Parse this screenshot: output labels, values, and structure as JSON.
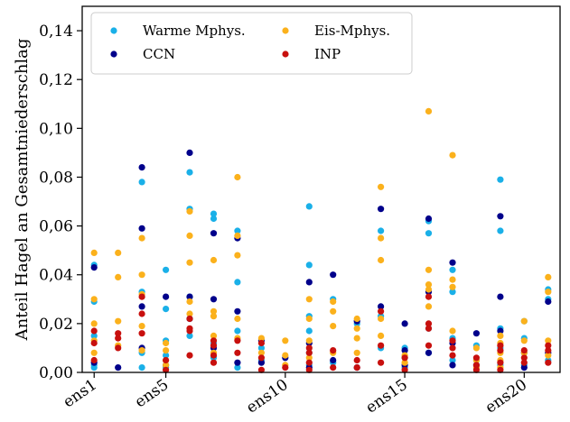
{
  "chart_data": {
    "type": "scatter",
    "title": "",
    "xlabel": "",
    "ylabel": "Anteil Hagel an Gesamtniederschlag",
    "ylim": [
      0,
      0.15
    ],
    "xlim": [
      0.5,
      20.5
    ],
    "grid": false,
    "legend_position": "top-left",
    "x_tick_positions": [
      1,
      4,
      9,
      14,
      19
    ],
    "x_tick_labels": [
      "ens1",
      "ens5",
      "ens10",
      "ens15",
      "ens20"
    ],
    "y_ticks": [
      0,
      0.02,
      0.04,
      0.06,
      0.08,
      0.1,
      0.12,
      0.14
    ],
    "y_tick_labels": [
      "0,00",
      "0,02",
      "0,04",
      "0,06",
      "0,08",
      "0,10",
      "0,12",
      "0,14"
    ],
    "series": [
      {
        "name": "Warme Mphys.",
        "color": "#1ab0e8",
        "points": [
          [
            1,
            0.044
          ],
          [
            1,
            0.029
          ],
          [
            1,
            0.003
          ],
          [
            1,
            0.002
          ],
          [
            1,
            0.015
          ],
          [
            3,
            0.078
          ],
          [
            3,
            0.033
          ],
          [
            3,
            0.008
          ],
          [
            3,
            0.002
          ],
          [
            4,
            0.042
          ],
          [
            4,
            0.026
          ],
          [
            4,
            0.013
          ],
          [
            4,
            0.007
          ],
          [
            4,
            0.002
          ],
          [
            5,
            0.082
          ],
          [
            5,
            0.067
          ],
          [
            5,
            0.031
          ],
          [
            5,
            0.022
          ],
          [
            5,
            0.015
          ],
          [
            6,
            0.065
          ],
          [
            6,
            0.063
          ],
          [
            6,
            0.012
          ],
          [
            6,
            0.006
          ],
          [
            7,
            0.058
          ],
          [
            7,
            0.037
          ],
          [
            7,
            0.017
          ],
          [
            7,
            0.002
          ],
          [
            8,
            0.01
          ],
          [
            8,
            0.005
          ],
          [
            10,
            0.068
          ],
          [
            10,
            0.044
          ],
          [
            10,
            0.023
          ],
          [
            10,
            0.017
          ],
          [
            10,
            0.008
          ],
          [
            10,
            0.003
          ],
          [
            11,
            0.03
          ],
          [
            11,
            0.004
          ],
          [
            12,
            0.02
          ],
          [
            13,
            0.058
          ],
          [
            13,
            0.023
          ],
          [
            13,
            0.01
          ],
          [
            14,
            0.01
          ],
          [
            14,
            0.006
          ],
          [
            14,
            0.002
          ],
          [
            15,
            0.062
          ],
          [
            15,
            0.057
          ],
          [
            15,
            0.018
          ],
          [
            15,
            0.008
          ],
          [
            16,
            0.042
          ],
          [
            16,
            0.033
          ],
          [
            16,
            0.014
          ],
          [
            16,
            0.005
          ],
          [
            17,
            0.011
          ],
          [
            17,
            0.005
          ],
          [
            18,
            0.079
          ],
          [
            18,
            0.058
          ],
          [
            18,
            0.018
          ],
          [
            18,
            0.01
          ],
          [
            18,
            0.003
          ],
          [
            19,
            0.021
          ],
          [
            19,
            0.014
          ],
          [
            19,
            0.003
          ],
          [
            20,
            0.034
          ],
          [
            20,
            0.03
          ],
          [
            20,
            0.005
          ]
        ]
      },
      {
        "name": "CCN",
        "color": "#00008b",
        "points": [
          [
            1,
            0.043
          ],
          [
            1,
            0.004
          ],
          [
            2,
            0.002
          ],
          [
            3,
            0.084
          ],
          [
            3,
            0.059
          ],
          [
            3,
            0.027
          ],
          [
            3,
            0.01
          ],
          [
            4,
            0.031
          ],
          [
            4,
            0.003
          ],
          [
            5,
            0.09
          ],
          [
            5,
            0.031
          ],
          [
            5,
            0.022
          ],
          [
            6,
            0.057
          ],
          [
            6,
            0.03
          ],
          [
            6,
            0.01
          ],
          [
            7,
            0.055
          ],
          [
            7,
            0.025
          ],
          [
            7,
            0.004
          ],
          [
            8,
            0.013
          ],
          [
            8,
            0.004
          ],
          [
            9,
            0.006
          ],
          [
            10,
            0.037
          ],
          [
            10,
            0.012
          ],
          [
            10,
            0.002
          ],
          [
            11,
            0.04
          ],
          [
            11,
            0.005
          ],
          [
            12,
            0.021
          ],
          [
            12,
            0.002
          ],
          [
            13,
            0.067
          ],
          [
            13,
            0.027
          ],
          [
            14,
            0.02
          ],
          [
            14,
            0.009
          ],
          [
            14,
            0.003
          ],
          [
            15,
            0.063
          ],
          [
            15,
            0.033
          ],
          [
            15,
            0.008
          ],
          [
            16,
            0.045
          ],
          [
            16,
            0.012
          ],
          [
            16,
            0.003
          ],
          [
            17,
            0.016
          ],
          [
            17,
            0.003
          ],
          [
            18,
            0.064
          ],
          [
            18,
            0.031
          ],
          [
            18,
            0.017
          ],
          [
            19,
            0.008
          ],
          [
            19,
            0.002
          ],
          [
            20,
            0.029
          ],
          [
            20,
            0.008
          ]
        ]
      },
      {
        "name": "Eis-Mphys.",
        "color": "#fbb11c",
        "points": [
          [
            1,
            0.049
          ],
          [
            1,
            0.03
          ],
          [
            1,
            0.02
          ],
          [
            1,
            0.013
          ],
          [
            1,
            0.008
          ],
          [
            2,
            0.049
          ],
          [
            2,
            0.039
          ],
          [
            2,
            0.021
          ],
          [
            2,
            0.011
          ],
          [
            3,
            0.055
          ],
          [
            3,
            0.04
          ],
          [
            3,
            0.032
          ],
          [
            3,
            0.019
          ],
          [
            3,
            0.009
          ],
          [
            4,
            0.012
          ],
          [
            4,
            0.009
          ],
          [
            4,
            0.005
          ],
          [
            4,
            0.003
          ],
          [
            5,
            0.066
          ],
          [
            5,
            0.056
          ],
          [
            5,
            0.045
          ],
          [
            5,
            0.029
          ],
          [
            5,
            0.024
          ],
          [
            6,
            0.046
          ],
          [
            6,
            0.025
          ],
          [
            6,
            0.023
          ],
          [
            6,
            0.015
          ],
          [
            6,
            0.008
          ],
          [
            7,
            0.08
          ],
          [
            7,
            0.056
          ],
          [
            7,
            0.048
          ],
          [
            7,
            0.022
          ],
          [
            7,
            0.014
          ],
          [
            8,
            0.014
          ],
          [
            8,
            0.008
          ],
          [
            9,
            0.013
          ],
          [
            9,
            0.007
          ],
          [
            9,
            0.003
          ],
          [
            10,
            0.03
          ],
          [
            10,
            0.022
          ],
          [
            10,
            0.013
          ],
          [
            10,
            0.006
          ],
          [
            11,
            0.029
          ],
          [
            11,
            0.025
          ],
          [
            11,
            0.019
          ],
          [
            11,
            0.008
          ],
          [
            12,
            0.022
          ],
          [
            12,
            0.018
          ],
          [
            12,
            0.014
          ],
          [
            12,
            0.008
          ],
          [
            13,
            0.076
          ],
          [
            13,
            0.055
          ],
          [
            13,
            0.046
          ],
          [
            13,
            0.022
          ],
          [
            13,
            0.015
          ],
          [
            14,
            0.007
          ],
          [
            14,
            0.004
          ],
          [
            15,
            0.107
          ],
          [
            15,
            0.042
          ],
          [
            15,
            0.036
          ],
          [
            15,
            0.034
          ],
          [
            15,
            0.027
          ],
          [
            16,
            0.089
          ],
          [
            16,
            0.038
          ],
          [
            16,
            0.035
          ],
          [
            16,
            0.017
          ],
          [
            17,
            0.01
          ],
          [
            17,
            0.005
          ],
          [
            17,
            0.002
          ],
          [
            18,
            0.015
          ],
          [
            18,
            0.012
          ],
          [
            18,
            0.008
          ],
          [
            18,
            0.005
          ],
          [
            18,
            0.002
          ],
          [
            19,
            0.021
          ],
          [
            19,
            0.013
          ],
          [
            19,
            0.008
          ],
          [
            20,
            0.039
          ],
          [
            20,
            0.033
          ],
          [
            20,
            0.013
          ],
          [
            20,
            0.007
          ]
        ]
      },
      {
        "name": "INP",
        "color": "#c8100e",
        "points": [
          [
            1,
            0.017
          ],
          [
            1,
            0.012
          ],
          [
            1,
            0.005
          ],
          [
            2,
            0.016
          ],
          [
            2,
            0.014
          ],
          [
            2,
            0.01
          ],
          [
            3,
            0.031
          ],
          [
            3,
            0.024
          ],
          [
            3,
            0.016
          ],
          [
            4,
            0.005
          ],
          [
            4,
            0.001
          ],
          [
            5,
            0.022
          ],
          [
            5,
            0.018
          ],
          [
            5,
            0.017
          ],
          [
            5,
            0.007
          ],
          [
            6,
            0.013
          ],
          [
            6,
            0.011
          ],
          [
            6,
            0.007
          ],
          [
            6,
            0.004
          ],
          [
            7,
            0.013
          ],
          [
            7,
            0.008
          ],
          [
            8,
            0.012
          ],
          [
            8,
            0.006
          ],
          [
            8,
            0.001
          ],
          [
            9,
            0.002
          ],
          [
            10,
            0.01
          ],
          [
            10,
            0.008
          ],
          [
            10,
            0.004
          ],
          [
            10,
            0.001
          ],
          [
            11,
            0.009
          ],
          [
            11,
            0.002
          ],
          [
            12,
            0.005
          ],
          [
            12,
            0.002
          ],
          [
            13,
            0.025
          ],
          [
            13,
            0.011
          ],
          [
            13,
            0.004
          ],
          [
            14,
            0.006
          ],
          [
            14,
            0.001
          ],
          [
            15,
            0.031
          ],
          [
            15,
            0.02
          ],
          [
            15,
            0.018
          ],
          [
            15,
            0.011
          ],
          [
            16,
            0.013
          ],
          [
            16,
            0.01
          ],
          [
            16,
            0.007
          ],
          [
            17,
            0.006
          ],
          [
            17,
            0.003
          ],
          [
            17,
            0.001
          ],
          [
            18,
            0.011
          ],
          [
            18,
            0.009
          ],
          [
            18,
            0.004
          ],
          [
            18,
            0.001
          ],
          [
            19,
            0.009
          ],
          [
            19,
            0.006
          ],
          [
            19,
            0.004
          ],
          [
            20,
            0.011
          ],
          [
            20,
            0.009
          ],
          [
            20,
            0.004
          ]
        ]
      }
    ]
  }
}
